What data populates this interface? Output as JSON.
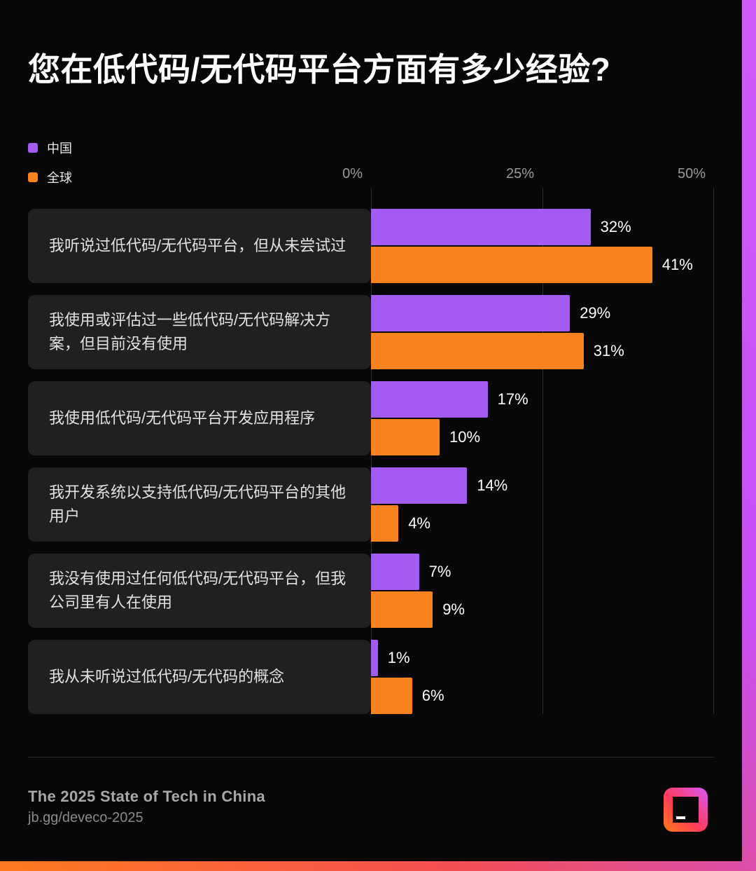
{
  "title": "您在低代码/无代码平台方面有多少经验?",
  "legend": [
    {
      "label": "中国",
      "color": "#A35BF2"
    },
    {
      "label": "全球",
      "color": "#F8821E"
    }
  ],
  "footer": {
    "title": "The 2025 State of Tech in China",
    "link": "jb.gg/deveco-2025"
  },
  "colors": {
    "background": "#070707",
    "label_panel": "#202022",
    "china_purple": "#A35BF2",
    "global_orange": "#F8821E",
    "frame_gradient": [
      "#FF7B1F",
      "#C84FF5"
    ],
    "gridline": "#2D2D2D"
  },
  "chart_data": {
    "type": "bar",
    "orientation": "horizontal",
    "title": "您在低代码/无代码平台方面有多少经验?",
    "categories": [
      "我听说过低代码/无代码平台，但从未尝试过",
      "我使用或评估过一些低代码/无代码解决方案，但目前没有使用",
      "我使用低代码/无代码平台开发应用程序",
      "我开发系统以支持低代码/无代码平台的其他用户",
      "我没有使用过任何低代码/无代码平台，但我公司里有人在使用",
      "我从未听说过低代码/无代码的概念"
    ],
    "series": [
      {
        "name": "中国",
        "color": "#A35BF2",
        "values": [
          32,
          29,
          17,
          14,
          7,
          1
        ]
      },
      {
        "name": "全球",
        "color": "#F8821E",
        "values": [
          41,
          31,
          10,
          4,
          9,
          6
        ]
      }
    ],
    "value_label_format": "{value}%",
    "x_axis": {
      "min": 0,
      "max": 50,
      "ticks": [
        {
          "label": "0%",
          "value": 0
        },
        {
          "label": "25%",
          "value": 25
        },
        {
          "label": "50%",
          "value": 50
        }
      ]
    },
    "grid": "vertical",
    "legend_position": "top-left"
  }
}
